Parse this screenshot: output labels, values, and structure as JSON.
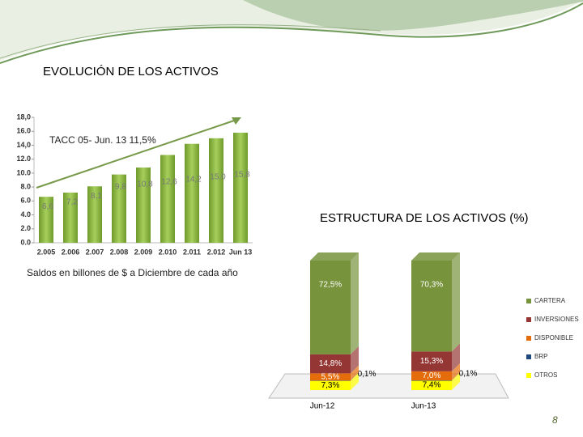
{
  "chart_data": [
    {
      "type": "bar",
      "title": "EVOLUCIÓN DE LOS ACTIVOS",
      "annotation": "TACC 05- Jun. 13  11,5%",
      "subtitle": "Saldos en billones de $ a Diciembre de cada año",
      "categories": [
        "2.005",
        "2.006",
        "2.007",
        "2.008",
        "2.009",
        "2.010",
        "2.011",
        "2.012",
        "Jun 13"
      ],
      "values": [
        6.6,
        7.2,
        8.1,
        9.8,
        10.8,
        12.6,
        14.2,
        15.0,
        15.8
      ],
      "value_labels": [
        "6,6",
        "7,2",
        "8,1",
        "9,8",
        "10,8",
        "12,6",
        "14,2",
        "15,0",
        "15,8"
      ],
      "color": "#8db145",
      "ylim": [
        0,
        18
      ],
      "yticks": [
        {
          "value": 0,
          "label": "0.0"
        },
        {
          "value": 2,
          "label": "2.0"
        },
        {
          "value": 4,
          "label": "4.0"
        },
        {
          "value": 6,
          "label": "6.0"
        },
        {
          "value": 8,
          "label": "8.0"
        },
        {
          "value": 10,
          "label": "10.0"
        },
        {
          "value": 12,
          "label": "12.0"
        },
        {
          "value": 14,
          "label": "14,0"
        },
        {
          "value": 16,
          "label": "16.0"
        },
        {
          "value": 18,
          "label": "18,0"
        }
      ]
    },
    {
      "type": "stacked-bar",
      "title": "ESTRUCTURA DE LOS ACTIVOS (%)",
      "categories": [
        "Jun-12",
        "Jun-13"
      ],
      "series": [
        {
          "name": "OTROS",
          "color": "#ffff00",
          "values": [
            7.3,
            7.4
          ],
          "value_labels": [
            "7,3%",
            "7,4%"
          ]
        },
        {
          "name": "BRP",
          "color": "#1f497d",
          "values": [
            0.1,
            0.1
          ],
          "value_labels": [
            "0,1%",
            "0,1%"
          ]
        },
        {
          "name": "DISPONIBLE",
          "color": "#e46c0a",
          "values": [
            5.5,
            7.0
          ],
          "value_labels": [
            "5,5%",
            "7,0%"
          ]
        },
        {
          "name": "INVERSIONES",
          "color": "#943634",
          "values": [
            14.8,
            15.3
          ],
          "value_labels": [
            "14,8%",
            "15,3%"
          ]
        },
        {
          "name": "CARTERA",
          "color": "#77933c",
          "values": [
            72.5,
            70.3
          ],
          "value_labels": [
            "72,5%",
            "70,3%"
          ]
        }
      ]
    }
  ],
  "page_number": "8"
}
